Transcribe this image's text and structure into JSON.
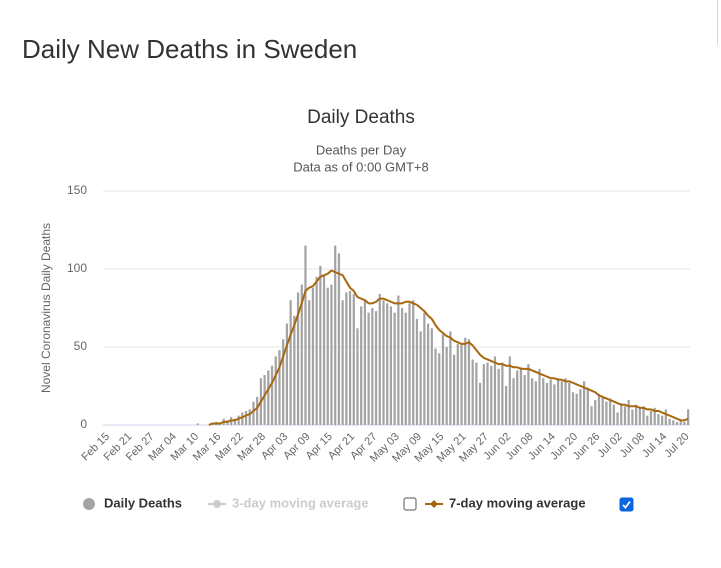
{
  "page_title": "Daily New Deaths in Sweden",
  "chart_data": {
    "type": "bar",
    "title": "Daily Deaths",
    "subtitle": [
      "Deaths per Day",
      "Data as of 0:00 GMT+8"
    ],
    "y_label": "Novel Coronavirus Daily Deaths",
    "ylim": [
      0,
      150
    ],
    "yticks": [
      0,
      50,
      100,
      150
    ],
    "grid": true,
    "categories": [
      "Feb 15",
      null,
      null,
      null,
      null,
      null,
      "Feb 21",
      null,
      null,
      null,
      null,
      null,
      "Feb 27",
      null,
      null,
      null,
      null,
      null,
      "Mar 04",
      null,
      null,
      null,
      null,
      null,
      "Mar 10",
      null,
      null,
      null,
      null,
      null,
      "Mar 16",
      null,
      null,
      null,
      null,
      null,
      "Mar 22",
      null,
      null,
      null,
      null,
      null,
      "Mar 28",
      null,
      null,
      null,
      null,
      null,
      "Apr 03",
      null,
      null,
      null,
      null,
      null,
      "Apr 09",
      null,
      null,
      null,
      null,
      null,
      "Apr 15",
      null,
      null,
      null,
      null,
      null,
      "Apr 21",
      null,
      null,
      null,
      null,
      null,
      "Apr 27",
      null,
      null,
      null,
      null,
      null,
      "May 03",
      null,
      null,
      null,
      null,
      null,
      "May 09",
      null,
      null,
      null,
      null,
      null,
      "May 15",
      null,
      null,
      null,
      null,
      null,
      "May 21",
      null,
      null,
      null,
      null,
      null,
      "May 27",
      null,
      null,
      null,
      null,
      null,
      "Jun 02",
      null,
      null,
      null,
      null,
      null,
      "Jun 08",
      null,
      null,
      null,
      null,
      null,
      "Jun 14",
      null,
      null,
      null,
      null,
      null,
      "Jun 20",
      null,
      null,
      null,
      null,
      null,
      "Jun 26",
      null,
      null,
      null,
      null,
      null,
      "Jul 02",
      null,
      null,
      null,
      null,
      null,
      "Jul 08",
      null,
      null,
      null,
      null,
      null,
      "Jul 14",
      null,
      null,
      null,
      null,
      null,
      "Jul 20",
      null
    ],
    "series": [
      {
        "name": "Daily Deaths",
        "type": "bar",
        "color": "#a3a3a3",
        "values": [
          0,
          0,
          0,
          0,
          0,
          0,
          0,
          0,
          0,
          0,
          0,
          0,
          0,
          0,
          0,
          0,
          0,
          0,
          0,
          0,
          0,
          0,
          0,
          0,
          0,
          1,
          0,
          0,
          0,
          1,
          2,
          1,
          4,
          3,
          5,
          4,
          6,
          8,
          9,
          10,
          15,
          18,
          30,
          32,
          35,
          38,
          44,
          48,
          55,
          65,
          80,
          70,
          85,
          90,
          115,
          80,
          88,
          95,
          102,
          96,
          88,
          90,
          115,
          110,
          80,
          85,
          86,
          84,
          62,
          76,
          80,
          72,
          75,
          73,
          84,
          80,
          78,
          76,
          72,
          83,
          75,
          72,
          78,
          80,
          68,
          60,
          72,
          65,
          62,
          49,
          46,
          58,
          50,
          60,
          45,
          52,
          52,
          56,
          55,
          42,
          40,
          27,
          39,
          40,
          38,
          44,
          36,
          40,
          25,
          44,
          30,
          35,
          37,
          32,
          39,
          30,
          28,
          36,
          30,
          27,
          29,
          26,
          30,
          28,
          30,
          27,
          21,
          20,
          23,
          28,
          24,
          12,
          16,
          20,
          18,
          15,
          17,
          13,
          8,
          14,
          12,
          16,
          10,
          13,
          11,
          12,
          6,
          9,
          11,
          7,
          6,
          10,
          4,
          3,
          2,
          3,
          2,
          10
        ]
      },
      {
        "name": "7-day moving average",
        "type": "line",
        "color": "#a8680f",
        "checked": true,
        "values": [
          null,
          null,
          null,
          null,
          null,
          null,
          null,
          null,
          null,
          null,
          null,
          null,
          null,
          null,
          null,
          null,
          null,
          null,
          null,
          null,
          null,
          null,
          null,
          null,
          null,
          null,
          null,
          null,
          0,
          1,
          1,
          1,
          2,
          2,
          3,
          3,
          4,
          5,
          6,
          7,
          9,
          11,
          15,
          19,
          23,
          27,
          32,
          37,
          44,
          51,
          58,
          64,
          71,
          78,
          86,
          88,
          89,
          92,
          95,
          96,
          97,
          99,
          98,
          97,
          96,
          92,
          88,
          86,
          82,
          81,
          80,
          78,
          78,
          79,
          81,
          81,
          80,
          79,
          78,
          78,
          78,
          79,
          79,
          78,
          77,
          75,
          73,
          70,
          68,
          64,
          61,
          59,
          57,
          56,
          54,
          53,
          52,
          52,
          53,
          51,
          48,
          45,
          43,
          42,
          41,
          40,
          39,
          39,
          38,
          38,
          37,
          37,
          36,
          36,
          36,
          35,
          34,
          33,
          32,
          31,
          30,
          30,
          29,
          29,
          28,
          28,
          27,
          26,
          25,
          24,
          23,
          22,
          21,
          19,
          18,
          17,
          16,
          15,
          14,
          13,
          13,
          12,
          12,
          12,
          11,
          11,
          10,
          10,
          9,
          9,
          8,
          7,
          6,
          5,
          4,
          3,
          3,
          4
        ]
      }
    ],
    "disabled_series": [
      {
        "name": "3-day moving average",
        "color": "#cccccc",
        "checked": false
      }
    ]
  }
}
